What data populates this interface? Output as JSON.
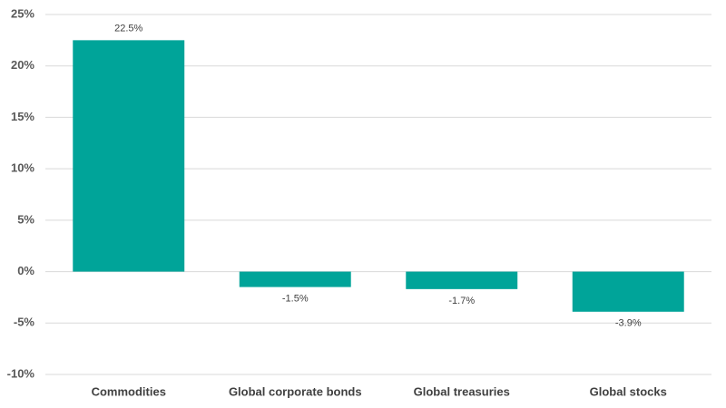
{
  "chart_data": {
    "type": "bar",
    "categories": [
      "Commodities",
      "Global corporate bonds",
      "Global treasuries",
      "Global stocks"
    ],
    "values": [
      22.5,
      -1.5,
      -1.7,
      -3.9
    ],
    "value_labels": [
      "22.5%",
      "-1.5%",
      "-1.7%",
      "-3.9%"
    ],
    "color": "#00a499",
    "ylim": [
      -10,
      25
    ],
    "yticks": [
      {
        "value": -10,
        "label": "-10%"
      },
      {
        "value": -5,
        "label": "-5%"
      },
      {
        "value": 0,
        "label": "0%"
      },
      {
        "value": 5,
        "label": "5%"
      },
      {
        "value": 10,
        "label": "10%"
      },
      {
        "value": 15,
        "label": "15%"
      },
      {
        "value": 20,
        "label": "20%"
      },
      {
        "value": 25,
        "label": "25%"
      }
    ],
    "grid": true
  }
}
